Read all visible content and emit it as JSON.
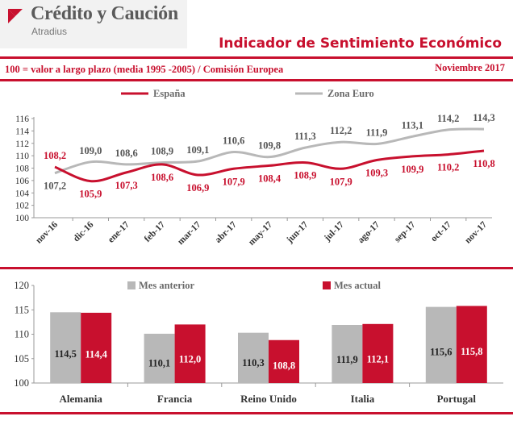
{
  "header": {
    "brand": "Crédito y Caución",
    "brand_sub": "Atradius",
    "report_title": "Indicador de Sentimiento Económico",
    "subtitle": "100 = valor a largo plazo (media 1995 -2005) / Comisión Europea",
    "date": "Noviembre 2017"
  },
  "colors": {
    "red": "#c8102e",
    "grey": "#b8b8b8"
  },
  "chart_data": [
    {
      "type": "line",
      "title": "",
      "xlabel": "",
      "ylabel": "",
      "x": [
        "nov-16",
        "dic-16",
        "ene-17",
        "feb-17",
        "mar-17",
        "abr-17",
        "may-17",
        "jun-17",
        "jul-17",
        "ago-17",
        "sep-17",
        "oct-17",
        "nov-17"
      ],
      "series": [
        {
          "name": "España",
          "color": "#c8102e",
          "values": [
            108.2,
            105.9,
            107.3,
            108.6,
            106.9,
            107.9,
            108.4,
            108.9,
            107.9,
            109.3,
            109.9,
            110.2,
            110.8
          ],
          "labels": [
            "108,2",
            "105,9",
            "107,3",
            "108,6",
            "106,9",
            "107,9",
            "108,4",
            "108,9",
            "107,9",
            "109,3",
            "109,9",
            "110,2",
            "110,8"
          ]
        },
        {
          "name": "Zona Euro",
          "color": "#b8b8b8",
          "values": [
            107.2,
            109.0,
            108.6,
            108.9,
            109.1,
            110.6,
            109.8,
            111.3,
            112.2,
            111.9,
            113.1,
            114.2,
            114.3
          ],
          "labels": [
            "107,2",
            "109,0",
            "108,6",
            "108,9",
            "109,1",
            "110,6",
            "109,8",
            "111,3",
            "112,2",
            "111,9",
            "113,1",
            "114,2",
            "114,3"
          ]
        }
      ],
      "ylim": [
        100,
        116
      ],
      "yticks": [
        "100",
        "102",
        "104",
        "106",
        "108",
        "110",
        "112",
        "114",
        "116"
      ],
      "legend": "top"
    },
    {
      "type": "bar",
      "title": "",
      "xlabel": "",
      "ylabel": "",
      "categories": [
        "Alemania",
        "Francia",
        "Reino Unido",
        "Italia",
        "Portugal"
      ],
      "series": [
        {
          "name": "Mes anterior",
          "color": "#b8b8b8",
          "values": [
            114.5,
            110.1,
            110.3,
            111.9,
            115.6
          ],
          "labels": [
            "114,5",
            "110,1",
            "110,3",
            "111,9",
            "115,6"
          ]
        },
        {
          "name": "Mes actual",
          "color": "#c8102e",
          "values": [
            114.4,
            112.0,
            108.8,
            112.1,
            115.8
          ],
          "labels": [
            "114,4",
            "112,0",
            "108,8",
            "112,1",
            "115,8"
          ]
        }
      ],
      "ylim": [
        100,
        120
      ],
      "yticks": [
        "100",
        "105",
        "110",
        "115",
        "120"
      ],
      "legend": "top"
    }
  ]
}
